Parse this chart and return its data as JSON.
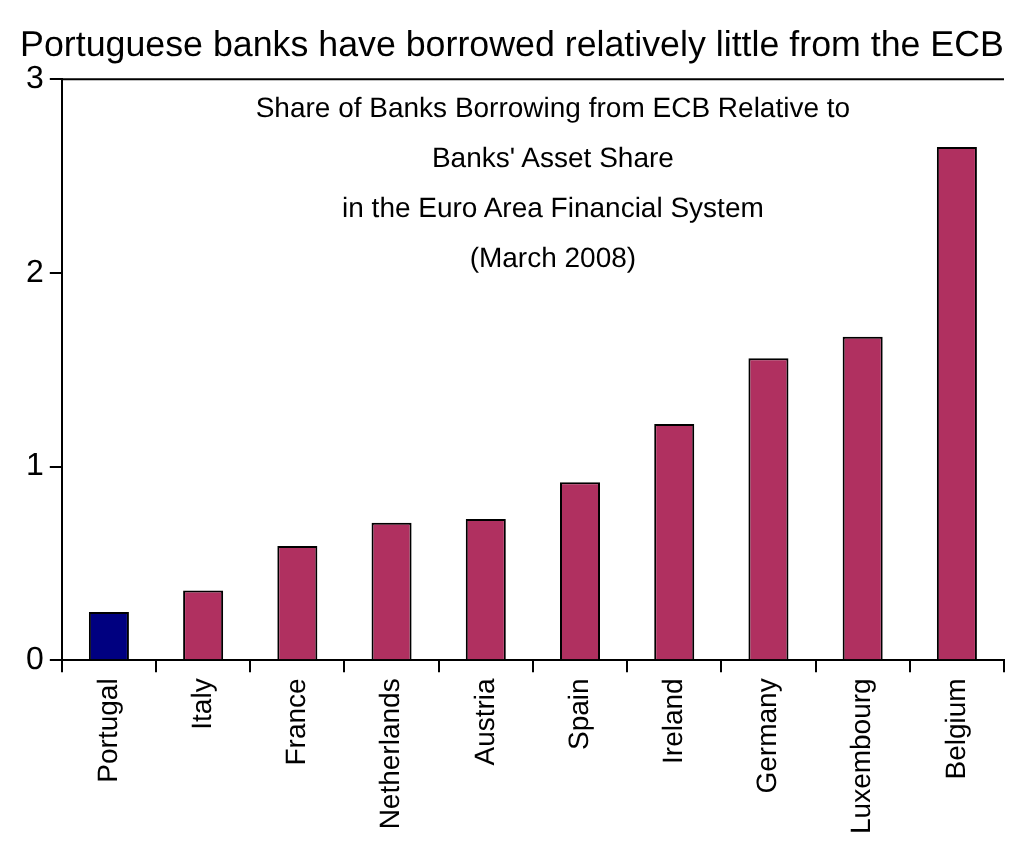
{
  "chart_data": {
    "type": "bar",
    "title": "Portuguese banks have borrowed relatively little from the ECB",
    "subtitle": "Share of Banks Borrowing from ECB Relative to\nBanks' Asset Share\nin the Euro Area Financial System\n(March 2008)",
    "categories": [
      "Portugal",
      "Italy",
      "France",
      "Netherlands",
      "Austria",
      "Spain",
      "Ireland",
      "Germany",
      "Luxembourg",
      "Belgium"
    ],
    "values": [
      0.25,
      0.36,
      0.59,
      0.71,
      0.73,
      0.92,
      1.22,
      1.56,
      1.67,
      2.65
    ],
    "colors": [
      "#000080",
      "#b03060",
      "#b03060",
      "#b03060",
      "#b03060",
      "#b03060",
      "#b03060",
      "#b03060",
      "#b03060",
      "#b03060"
    ],
    "ylim": [
      0,
      3
    ],
    "yticks": [
      0,
      1,
      2,
      3
    ],
    "grid": false,
    "legend": false
  }
}
